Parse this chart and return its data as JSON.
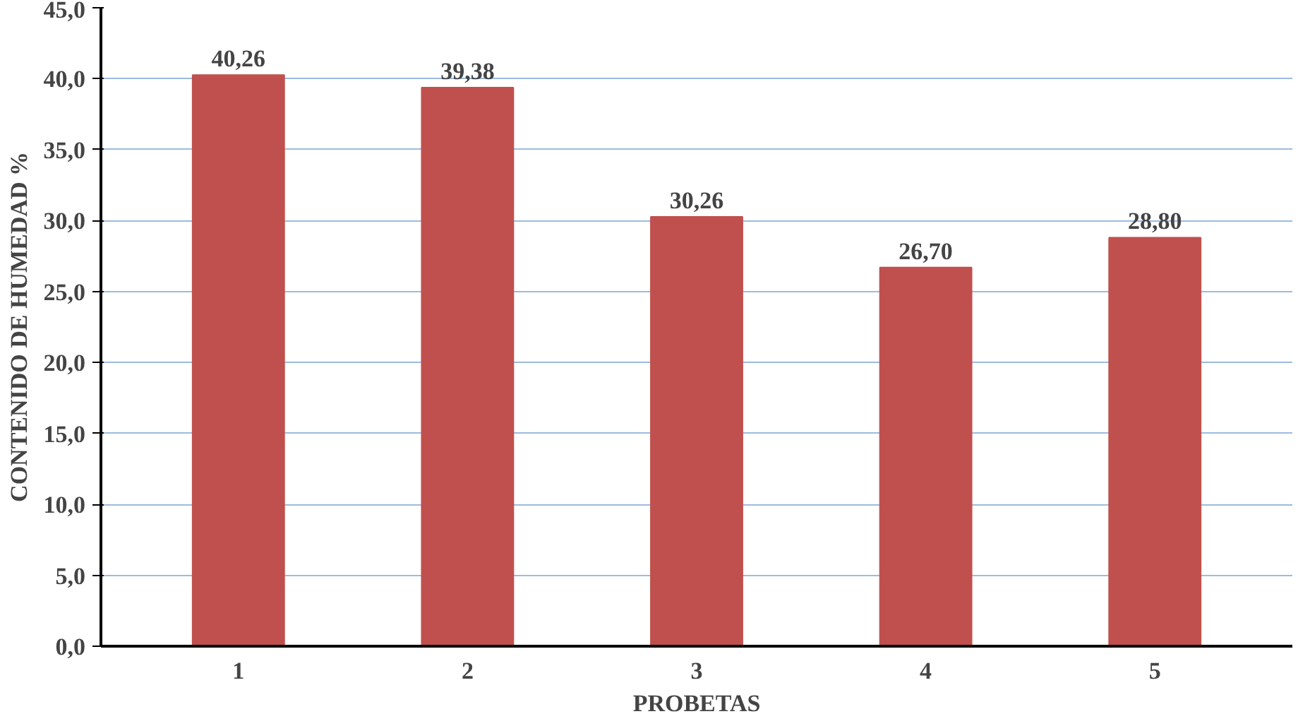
{
  "chart_data": {
    "type": "bar",
    "xlabel": "PROBETAS",
    "ylabel": "CONTENIDO DE HUMEDAD %",
    "categories": [
      "1",
      "2",
      "3",
      "4",
      "5"
    ],
    "values": [
      40.26,
      39.38,
      30.26,
      26.7,
      28.8
    ],
    "value_labels": [
      "40,26",
      "39,38",
      "30,26",
      "26,70",
      "28,80"
    ],
    "color": "#c0504d",
    "ylim": [
      0,
      45
    ],
    "yticks": [
      {
        "value": 0,
        "label": "0,0"
      },
      {
        "value": 5,
        "label": "5,0"
      },
      {
        "value": 10,
        "label": "10,0"
      },
      {
        "value": 15,
        "label": "15,0"
      },
      {
        "value": 20,
        "label": "20,0"
      },
      {
        "value": 25,
        "label": "25,0"
      },
      {
        "value": 30,
        "label": "30,0"
      },
      {
        "value": 35,
        "label": "35,0"
      },
      {
        "value": 40,
        "label": "40,0"
      },
      {
        "value": 45,
        "label": "45,0"
      }
    ],
    "grid": "y"
  }
}
